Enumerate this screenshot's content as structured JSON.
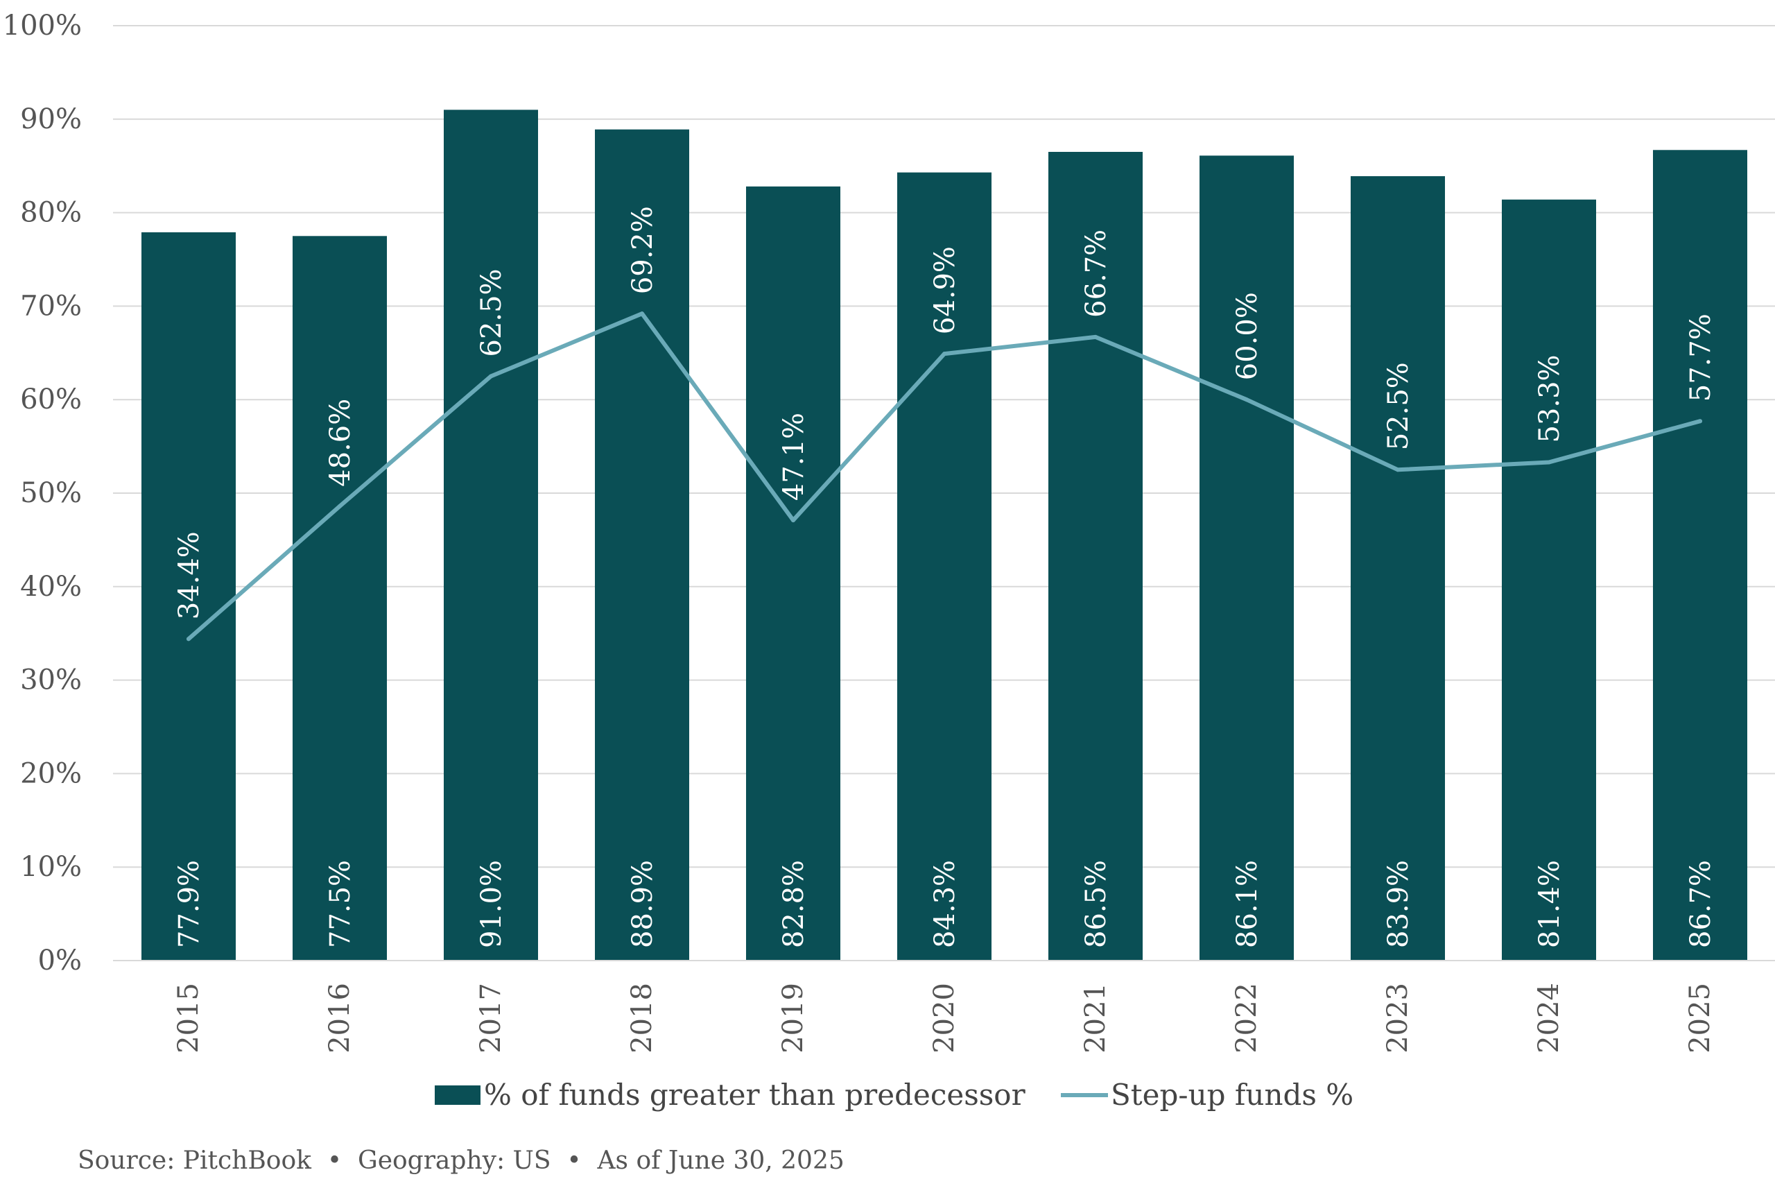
{
  "chart_data": {
    "type": "bar",
    "categories": [
      "2015",
      "2016",
      "2017",
      "2018",
      "2019",
      "2020",
      "2021",
      "2022",
      "2023",
      "2024",
      "2025"
    ],
    "series": [
      {
        "name": "% of funds greater than predecessor",
        "type": "bar",
        "values": [
          77.9,
          77.5,
          91.0,
          88.9,
          82.8,
          84.3,
          86.5,
          86.1,
          83.9,
          81.4,
          86.7
        ],
        "labels": [
          "77.9%",
          "77.5%",
          "91.0%",
          "88.9%",
          "82.8%",
          "84.3%",
          "86.5%",
          "86.1%",
          "83.9%",
          "81.4%",
          "86.7%"
        ],
        "color": "#0A4F55"
      },
      {
        "name": "Step-up funds %",
        "type": "line",
        "values": [
          34.4,
          48.6,
          62.5,
          69.2,
          47.1,
          64.9,
          66.7,
          60.0,
          52.5,
          53.3,
          57.7
        ],
        "labels": [
          "34.4%",
          "48.6%",
          "62.5%",
          "69.2%",
          "47.1%",
          "64.9%",
          "66.7%",
          "60.0%",
          "52.5%",
          "53.3%",
          "57.7%"
        ],
        "color": "#6AAAB8"
      }
    ],
    "ylim": [
      0,
      100
    ],
    "yticks": [
      0,
      10,
      20,
      30,
      40,
      50,
      60,
      70,
      80,
      90,
      100
    ],
    "ytick_labels": [
      "0%",
      "10%",
      "20%",
      "30%",
      "40%",
      "50%",
      "60%",
      "70%",
      "80%",
      "90%",
      "100%"
    ],
    "grid": true,
    "legend_position": "bottom",
    "gridline_color": "#D9D9D9"
  },
  "source": {
    "text": "Source: PitchBook  •  Geography: US  •  As of June 30, 2025"
  }
}
